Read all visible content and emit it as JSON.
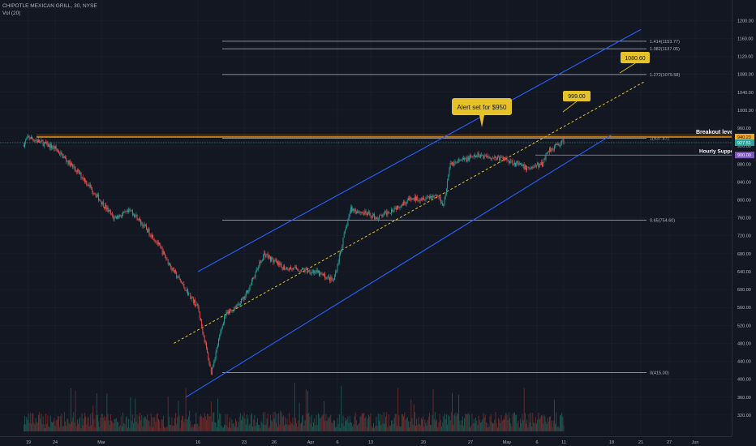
{
  "legend": {
    "symbol_line": "CHIPOTLE MEXICAN GRILL, 30, NYSE",
    "volume_line": "Vol (20)"
  },
  "chart_data": {
    "type": "candlestick",
    "title": "CHIPOTLE MEXICAN GRILL, 30, NYSE",
    "ylim": [
      300,
      1215
    ],
    "y_ticks": [
      320,
      360,
      400,
      440,
      480,
      520,
      560,
      600,
      640,
      680,
      720,
      760,
      800,
      840,
      880,
      920,
      960,
      1000,
      1040,
      1080,
      1120,
      1160,
      1200
    ],
    "x_ticks": [
      "19",
      "24",
      "Mar",
      "16",
      "23",
      "26",
      "Apr",
      "6",
      "13",
      "20",
      "27",
      "May",
      "6",
      "11",
      "18",
      "21",
      "27",
      "Jun"
    ],
    "price_anchors": [
      {
        "date": "Feb 18",
        "price": 922
      },
      {
        "date": "Feb 19",
        "price": 940
      },
      {
        "date": "Feb 24",
        "price": 915
      },
      {
        "date": "Feb 27",
        "price": 850
      },
      {
        "date": "Mar 2",
        "price": 760
      },
      {
        "date": "Mar 5",
        "price": 775
      },
      {
        "date": "Mar 9",
        "price": 710
      },
      {
        "date": "Mar 12",
        "price": 640
      },
      {
        "date": "Mar 16",
        "price": 560
      },
      {
        "date": "Mar 18",
        "price": 415
      },
      {
        "date": "Mar 20",
        "price": 540
      },
      {
        "date": "Mar 23",
        "price": 580
      },
      {
        "date": "Mar 25",
        "price": 680
      },
      {
        "date": "Mar 27",
        "price": 650
      },
      {
        "date": "Apr 1",
        "price": 640
      },
      {
        "date": "Apr 6",
        "price": 620
      },
      {
        "date": "Apr 8",
        "price": 720
      },
      {
        "date": "Apr 9",
        "price": 780
      },
      {
        "date": "Apr 13",
        "price": 760
      },
      {
        "date": "Apr 17",
        "price": 800
      },
      {
        "date": "Apr 21",
        "price": 810
      },
      {
        "date": "Apr 22",
        "price": 790
      },
      {
        "date": "Apr 23",
        "price": 880
      },
      {
        "date": "Apr 27",
        "price": 900
      },
      {
        "date": "Apr 30",
        "price": 890
      },
      {
        "date": "May 4",
        "price": 870
      },
      {
        "date": "May 7",
        "price": 880
      },
      {
        "date": "May 8",
        "price": 910
      },
      {
        "date": "May 11",
        "price": 930
      }
    ],
    "fib_levels": [
      {
        "label": "1.414(1153.77)",
        "value": 1153.77
      },
      {
        "label": "1.382(1137.05)",
        "value": 1137.05
      },
      {
        "label": "1.272(1079.58)",
        "value": 1079.58
      },
      {
        "label": "1(937.47)",
        "value": 937.47
      },
      {
        "label": "0.65(754.60)",
        "value": 754.6
      },
      {
        "label": "0(415.00)",
        "value": 415.0
      }
    ],
    "breakout_level": {
      "label": "Breakout level",
      "value": 940.23,
      "axis_label": "940.23",
      "color": "#f5a623"
    },
    "current_price": {
      "value": 927.51,
      "axis_label": "927.51",
      "color": "#26a69a"
    },
    "hourly_support": {
      "label": "Hourly Support",
      "value": 900.0,
      "axis_label": "900.00",
      "color": "#7e57c2"
    },
    "channel": {
      "color": "#2962ff",
      "upper": [
        {
          "date": "Mar 16",
          "price": 640
        },
        {
          "date": "May 21",
          "price": 1180
        }
      ],
      "lower": [
        {
          "date": "Mar 14",
          "price": 360
        },
        {
          "date": "May 18",
          "price": 945
        }
      ]
    },
    "projection": {
      "color": "#e6c229",
      "points": [
        {
          "date": "Mar 12",
          "price": 480
        },
        {
          "date": "May 22",
          "price": 1065
        }
      ]
    },
    "callouts": [
      {
        "text": "Alert set for $950",
        "price": 950,
        "color": "#e6c229"
      },
      {
        "text": "999.00",
        "price": 999.0,
        "color": "#e6c229"
      },
      {
        "text": "1080.60",
        "price": 1080.6,
        "color": "#e6c229"
      }
    ],
    "colors": {
      "up": "#26a69a",
      "down": "#ef5350",
      "background": "#131722"
    }
  }
}
